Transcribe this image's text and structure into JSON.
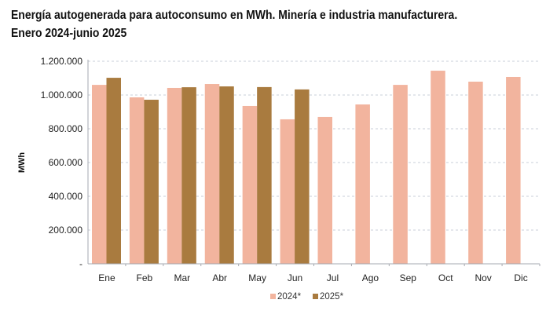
{
  "title": {
    "line1": "Energía autogenerada para autoconsumo en MWh. Minería e industria manufacturera.",
    "line2": "Enero 2024-junio 2025"
  },
  "chart_data": {
    "type": "bar",
    "title": "Energía autogenerada para autoconsumo en MWh. Minería e industria manufacturera. Enero 2024-junio 2025",
    "xlabel": "",
    "ylabel": "MWh",
    "ylim": [
      0,
      1200000
    ],
    "yticks": [
      0,
      200000,
      400000,
      600000,
      800000,
      1000000,
      1200000
    ],
    "ytick_labels": [
      "-",
      "200.000",
      "400.000",
      "600.000",
      "800.000",
      "1.000.000",
      "1.200.000"
    ],
    "grid": true,
    "legend_position": "bottom-center",
    "categories": [
      "Ene",
      "Feb",
      "Mar",
      "Abr",
      "May",
      "Jun",
      "Jul",
      "Ago",
      "Sep",
      "Oct",
      "Nov",
      "Dic"
    ],
    "series": [
      {
        "name": "2024*",
        "color": "#F2B49E",
        "values": [
          1060000,
          986000,
          1042000,
          1065000,
          935000,
          856000,
          870000,
          944000,
          1060000,
          1144000,
          1079000,
          1107000
        ]
      },
      {
        "name": "2025*",
        "color": "#A97B3F",
        "values": [
          1102000,
          972000,
          1046000,
          1051000,
          1047000,
          1033000,
          null,
          null,
          null,
          null,
          null,
          null
        ]
      }
    ]
  }
}
